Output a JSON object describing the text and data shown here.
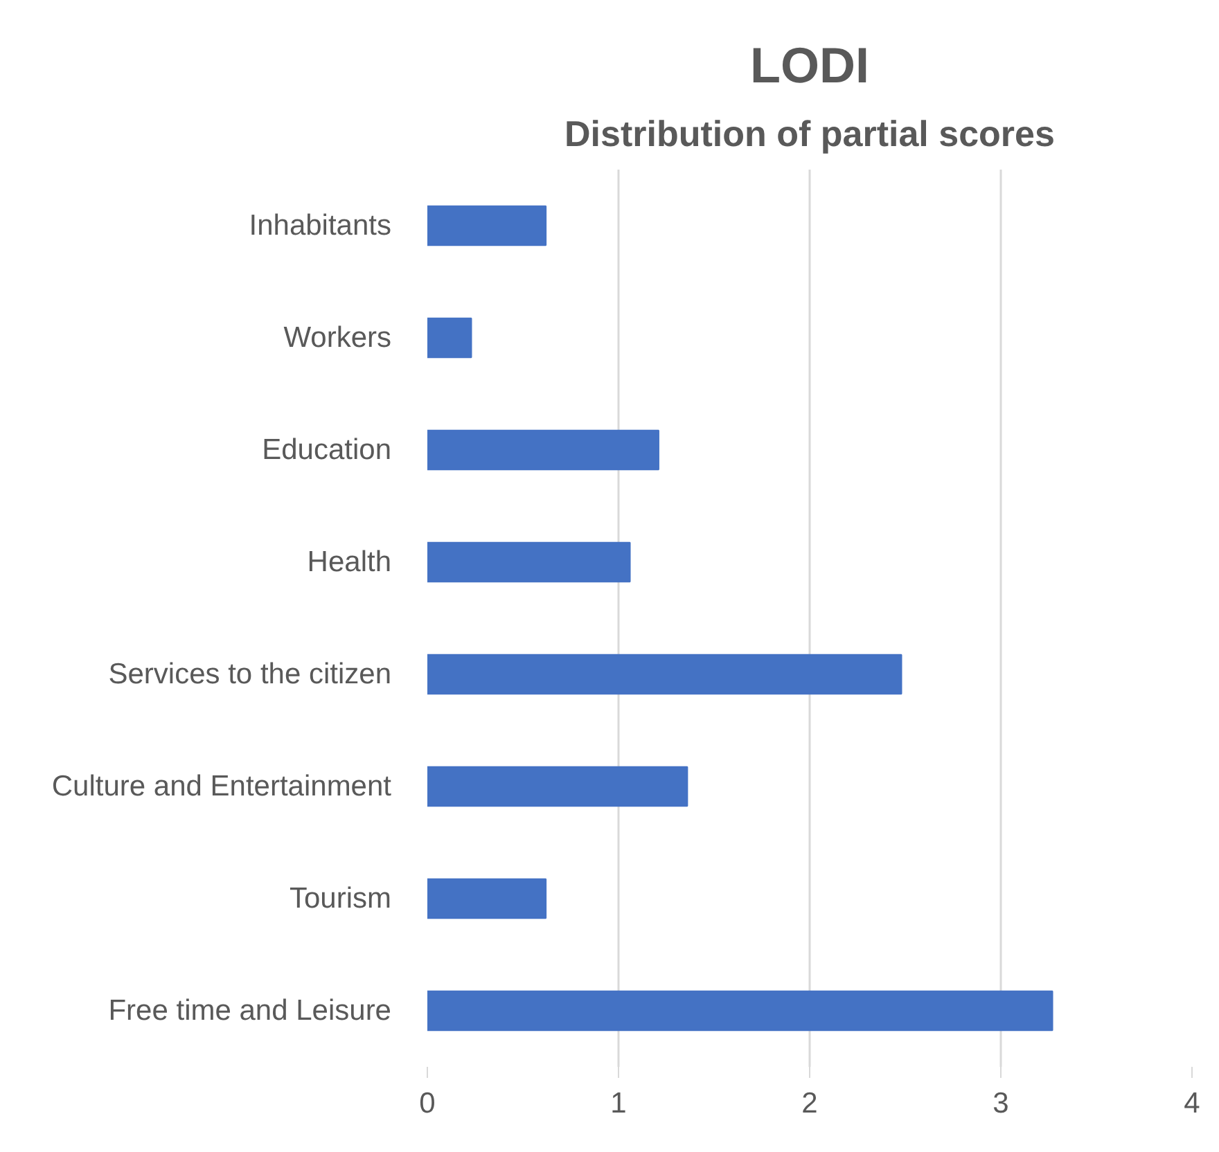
{
  "chart_data": {
    "type": "bar",
    "title": "LODI",
    "subtitle": "Distribution of partial scores",
    "orientation": "horizontal",
    "categories": [
      "Inhabitants",
      "Workers",
      "Education",
      "Health",
      "Services to the citizen",
      "Culture and Entertainment",
      "Tourism",
      "Free time and Leisure"
    ],
    "values": [
      0.62,
      0.23,
      1.21,
      1.06,
      2.48,
      1.36,
      0.62,
      3.27
    ],
    "color": "#4472c4",
    "xlim": [
      0,
      4
    ],
    "xticks": [
      0,
      1,
      2,
      3,
      4
    ],
    "grid": "x"
  }
}
